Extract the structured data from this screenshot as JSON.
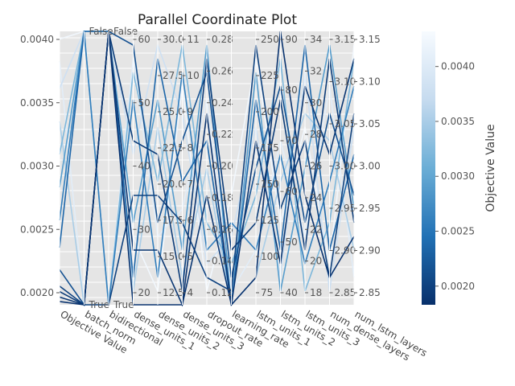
{
  "chart_data": {
    "type": "parallel_coordinates",
    "title": "Parallel Coordinate Plot",
    "colorbar": {
      "label": "Objective Value",
      "ticks": [
        "0.0020",
        "0.0025",
        "0.0030",
        "0.0035",
        "0.0040"
      ],
      "range": [
        0.00183,
        0.00432
      ],
      "colormap": [
        "#08306b",
        "#2171b5",
        "#6baed6",
        "#c6dbef",
        "#f7fbff"
      ]
    },
    "axes": [
      {
        "name": "Objective Value",
        "range": [
          0.00183,
          0.00432
        ],
        "ticks": [
          "0.0020",
          "0.0025",
          "0.0030",
          "0.0035",
          "0.0040"
        ]
      },
      {
        "name": "batch_norm",
        "categories": [
          "True",
          "False"
        ]
      },
      {
        "name": "bidirectional",
        "categories": [
          "True",
          "False"
        ]
      },
      {
        "name": "dense_units_1",
        "range": [
          12,
          66
        ],
        "ticks": [
          "20",
          "30",
          "40",
          "50",
          "60"
        ]
      },
      {
        "name": "dense_units_2",
        "range": [
          10,
          31.5
        ],
        "ticks": [
          "12.5",
          "15.0",
          "17.5",
          "20.0",
          "22.5",
          "25.0",
          "27.5",
          "30.0"
        ]
      },
      {
        "name": "dense_units_3",
        "range": [
          4,
          11
        ],
        "ticks": [
          "4",
          "5",
          "6",
          "7",
          "8",
          "9",
          "10",
          "11"
        ]
      },
      {
        "name": "dropout_rate",
        "range": [
          0.1,
          0.3
        ],
        "ticks": [
          "0.12",
          "0.14",
          "0.16",
          "0.18",
          "0.20",
          "0.22",
          "0.24",
          "0.26",
          "0.28"
        ]
      },
      {
        "name": "learning_rate",
        "range": [
          0.0,
          0.01
        ],
        "ticks": []
      },
      {
        "name": "lstm_units_1",
        "range": [
          64,
          256
        ],
        "ticks": [
          "75",
          "100",
          "125",
          "150",
          "175",
          "200",
          "225",
          "250"
        ]
      },
      {
        "name": "lstm_units_2",
        "range": [
          32,
          92
        ],
        "ticks": [
          "40",
          "50",
          "60",
          "70",
          "80",
          "90"
        ]
      },
      {
        "name": "lstm_units_3",
        "range": [
          16,
          36
        ],
        "ticks": [
          "18",
          "20",
          "22",
          "24",
          "26",
          "28",
          "30",
          "32",
          "34"
        ]
      },
      {
        "name": "num_dense_layers",
        "range": [
          2.85,
          3.15
        ],
        "ticks": [
          "2.85",
          "2.90",
          "2.95",
          "3.00",
          "3.05",
          "3.10",
          "3.15"
        ]
      },
      {
        "name": "num_lstm_layers",
        "range": [
          2.85,
          3.15
        ],
        "ticks": [
          "2.85",
          "2.90",
          "2.95",
          "3.00",
          "3.05",
          "3.10",
          "3.15"
        ]
      }
    ],
    "series": [
      {
        "objective": 0.00186,
        "values": [
          0.00186,
          0.0,
          1.0,
          0.0,
          0.0,
          0.0,
          0.7,
          0.0,
          0.1,
          1.0,
          0.4,
          0.1,
          0.25
        ]
      },
      {
        "objective": 0.0019,
        "values": [
          0.0019,
          0.0,
          1.0,
          0.2,
          0.2,
          0.0,
          0.4,
          0.0,
          0.6,
          0.15,
          0.8,
          0.55,
          0.9
        ]
      },
      {
        "objective": 0.00195,
        "values": [
          0.00195,
          0.0,
          1.0,
          0.6,
          0.55,
          0.05,
          0.9,
          0.2,
          0.3,
          0.75,
          0.2,
          0.9,
          0.3
        ]
      },
      {
        "objective": 0.002,
        "values": [
          0.002,
          0.0,
          0.0,
          0.4,
          0.4,
          0.3,
          0.1,
          0.05,
          0.95,
          0.35,
          0.6,
          0.1,
          0.7
        ]
      },
      {
        "objective": 0.00215,
        "values": [
          0.00215,
          0.0,
          1.0,
          0.95,
          0.3,
          0.6,
          0.85,
          0.1,
          0.5,
          0.8,
          0.3,
          0.7,
          0.4
        ]
      },
      {
        "objective": 0.00235,
        "values": [
          0.00235,
          1.0,
          1.0,
          0.1,
          0.9,
          0.45,
          0.6,
          0.0,
          0.75,
          0.2,
          0.95,
          0.2,
          0.55
        ]
      },
      {
        "objective": 0.0026,
        "values": [
          0.0026,
          1.0,
          0.0,
          0.75,
          0.1,
          0.85,
          0.2,
          0.3,
          0.2,
          0.55,
          0.15,
          0.45,
          0.8
        ]
      },
      {
        "objective": 0.0029,
        "values": [
          0.0029,
          1.0,
          1.0,
          0.3,
          0.75,
          0.2,
          0.95,
          0.0,
          0.85,
          0.05,
          0.5,
          0.95,
          0.35
        ]
      },
      {
        "objective": 0.0032,
        "values": [
          0.0032,
          1.0,
          0.0,
          0.85,
          0.45,
          0.95,
          0.3,
          0.15,
          0.4,
          0.9,
          0.05,
          0.3,
          0.9
        ]
      },
      {
        "objective": 0.0035,
        "values": [
          0.0035,
          0.0,
          1.0,
          0.05,
          0.65,
          0.1,
          0.5,
          0.0,
          0.1,
          0.45,
          0.7,
          0.6,
          0.2
        ]
      },
      {
        "objective": 0.0038,
        "values": [
          0.0038,
          1.0,
          1.0,
          0.55,
          0.95,
          0.7,
          0.15,
          0.25,
          0.65,
          0.1,
          0.85,
          0.05,
          0.65
        ]
      },
      {
        "objective": 0.00405,
        "values": [
          0.00405,
          0.0,
          0.0,
          0.9,
          0.25,
          0.35,
          0.75,
          0.05,
          0.2,
          0.6,
          0.25,
          0.8,
          0.1
        ]
      },
      {
        "objective": 0.00425,
        "values": [
          0.00425,
          1.0,
          1.0,
          0.25,
          0.05,
          0.8,
          0.05,
          0.4,
          0.9,
          0.3,
          0.65,
          0.15,
          0.95
        ]
      }
    ]
  }
}
